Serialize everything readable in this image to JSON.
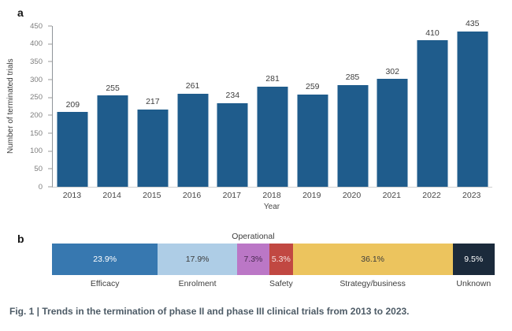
{
  "figure": {
    "panel_a_label": "a",
    "panel_b_label": "b",
    "caption": "Fig. 1 | Trends in the termination of phase II and phase III clinical trials from 2013 to 2023."
  },
  "chart_data": [
    {
      "type": "bar",
      "panel": "a",
      "categories": [
        "2013",
        "2014",
        "2015",
        "2016",
        "2017",
        "2018",
        "2019",
        "2020",
        "2021",
        "2022",
        "2023"
      ],
      "values": [
        209,
        255,
        217,
        261,
        234,
        281,
        259,
        285,
        302,
        410,
        435
      ],
      "xlabel": "Year",
      "ylabel": "Number of terminated trials",
      "ylim": [
        0,
        450
      ],
      "ytick_step": 50,
      "bar_color": "#1f5c8c",
      "value_label_color": "#3d3d3d",
      "grid": false,
      "legend": "none"
    },
    {
      "type": "stacked-bar",
      "panel": "b",
      "unit": "%",
      "segments": [
        {
          "label": "Efficacy",
          "value": 23.9,
          "display": "23.9%",
          "color": "#3778b0",
          "text_color": "#ffffff",
          "label_position": "below"
        },
        {
          "label": "Enrolment",
          "value": 17.9,
          "display": "17.9%",
          "color": "#aecde6",
          "text_color": "#3c3c3c",
          "label_position": "below"
        },
        {
          "label": "Operational",
          "value": 7.3,
          "display": "7.3%",
          "color": "#bb77c6",
          "text_color": "#4a2a52",
          "label_position": "above"
        },
        {
          "label": "Safety",
          "value": 5.3,
          "display": "5.3%",
          "color": "#c14842",
          "text_color": "#f6e3e1",
          "label_position": "below"
        },
        {
          "label": "Strategy/business",
          "value": 36.1,
          "display": "36.1%",
          "color": "#ecc45e",
          "text_color": "#3c3c3c",
          "label_position": "below"
        },
        {
          "label": "Unknown",
          "value": 9.5,
          "display": "9.5%",
          "color": "#1b2a3b",
          "text_color": "#ffffff",
          "label_position": "below"
        }
      ]
    }
  ]
}
